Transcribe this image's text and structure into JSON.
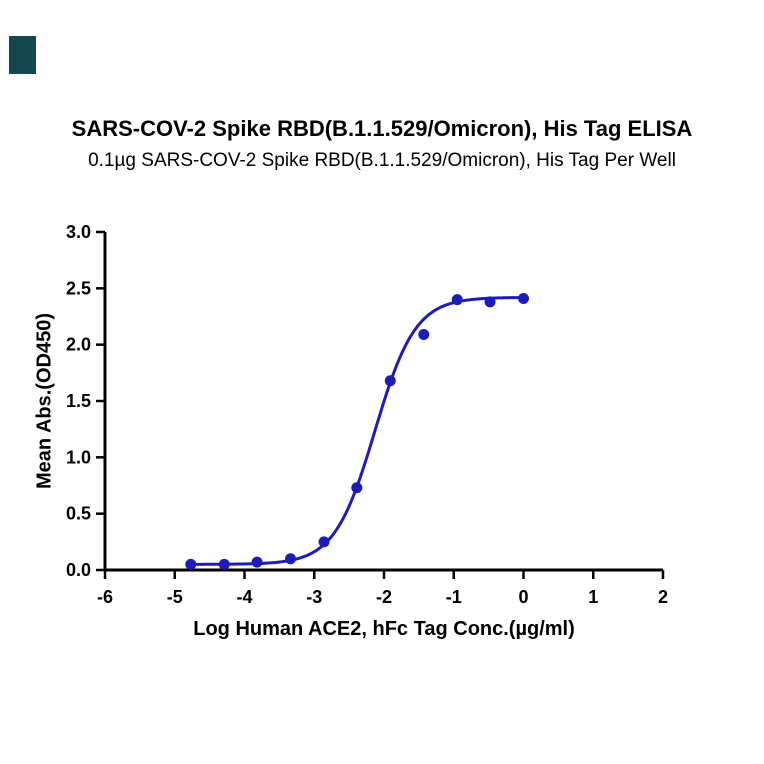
{
  "page": {
    "background": "#ffffff"
  },
  "logo_mark": {
    "color": "#15484e"
  },
  "header": {
    "title": "SARS-COV-2 Spike RBD(B.1.1.529/Omicron), His Tag ELISA",
    "subtitle": "0.1µg SARS-COV-2 Spike RBD(B.1.1.529/Omicron), His Tag Per Well"
  },
  "chart_data": {
    "type": "scatter",
    "title": "SARS-COV-2 Spike RBD(B.1.1.529/Omicron), His Tag ELISA",
    "subtitle": "0.1µg SARS-COV-2 Spike RBD(B.1.1.529/Omicron), His Tag Per Well",
    "xlabel": "Log Human ACE2, hFc Tag Conc.(µg/ml)",
    "ylabel": "Mean Abs.(OD450)",
    "xlim": [
      -6,
      2
    ],
    "ylim": [
      0,
      3
    ],
    "x_ticks": [
      {
        "value": -6,
        "label": "-6"
      },
      {
        "value": -5,
        "label": "-5"
      },
      {
        "value": -4,
        "label": "-4"
      },
      {
        "value": -3,
        "label": "-3"
      },
      {
        "value": -2,
        "label": "-2"
      },
      {
        "value": -1,
        "label": "-1"
      },
      {
        "value": 0,
        "label": "0"
      },
      {
        "value": 1,
        "label": "1"
      },
      {
        "value": 2,
        "label": "2"
      }
    ],
    "y_ticks": [
      {
        "value": 0.0,
        "label": "0.0"
      },
      {
        "value": 0.5,
        "label": "0.5"
      },
      {
        "value": 1.0,
        "label": "1.0"
      },
      {
        "value": 1.5,
        "label": "1.5"
      },
      {
        "value": 2.0,
        "label": "2.0"
      },
      {
        "value": 2.5,
        "label": "2.5"
      },
      {
        "value": 3.0,
        "label": "3.0"
      }
    ],
    "points": [
      {
        "x": -4.77,
        "y": 0.05
      },
      {
        "x": -4.29,
        "y": 0.05
      },
      {
        "x": -3.82,
        "y": 0.07
      },
      {
        "x": -3.34,
        "y": 0.1
      },
      {
        "x": -2.86,
        "y": 0.25
      },
      {
        "x": -2.39,
        "y": 0.73
      },
      {
        "x": -1.91,
        "y": 1.68
      },
      {
        "x": -1.43,
        "y": 2.09
      },
      {
        "x": -0.95,
        "y": 2.4
      },
      {
        "x": -0.48,
        "y": 2.38
      },
      {
        "x": 0.0,
        "y": 2.41
      }
    ],
    "curve_fit": {
      "model": "4PL",
      "bottom": 0.05,
      "top": 2.42,
      "log_ec50": -2.13,
      "hill": 1.5,
      "x_start": -4.77,
      "x_end": 0.0
    },
    "marker": "filled-circle",
    "grid": false,
    "legend": null,
    "colors": {
      "series": "#1c1cb8",
      "axis": "#000000"
    }
  }
}
